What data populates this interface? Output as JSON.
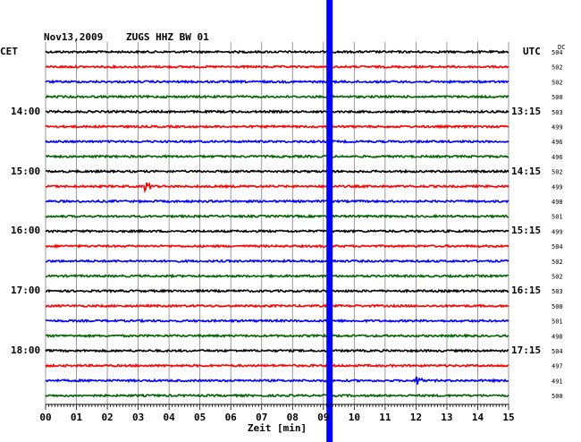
{
  "header": {
    "date": "Nov13,2009",
    "station": "ZUGS HHZ BW 01",
    "left_tz": "CET",
    "right_tz": "UTC",
    "dc_header": "DC"
  },
  "colors": {
    "trace_cycle": [
      "#000000",
      "#ff0000",
      "#0000ff",
      "#006400"
    ],
    "event_marker": "#0000ff",
    "grid": "#808080",
    "axis": "#000000"
  },
  "chart_data": {
    "type": "line",
    "title": "Nov13,2009   ZUGS HHZ BW 01",
    "xlabel": "Zeit [min]",
    "ylabel": "",
    "xlim": [
      0,
      15
    ],
    "x_ticks": [
      "00",
      "01",
      "02",
      "03",
      "04",
      "05",
      "06",
      "07",
      "08",
      "09",
      "10",
      "11",
      "12",
      "13",
      "14",
      "15"
    ],
    "grid": true,
    "trace_count": 24,
    "trace_interval_min": 15,
    "left_time_labels": [
      {
        "trace": 4,
        "label": "14:00"
      },
      {
        "trace": 8,
        "label": "15:00"
      },
      {
        "trace": 12,
        "label": "16:00"
      },
      {
        "trace": 16,
        "label": "17:00"
      },
      {
        "trace": 20,
        "label": "18:00"
      }
    ],
    "right_time_labels": [
      {
        "trace": 4,
        "label": "13:15"
      },
      {
        "trace": 8,
        "label": "14:15"
      },
      {
        "trace": 12,
        "label": "15:15"
      },
      {
        "trace": 16,
        "label": "16:15"
      },
      {
        "trace": 20,
        "label": "17:15"
      }
    ],
    "dc_offsets": [
      504,
      502,
      502,
      500,
      503,
      499,
      496,
      496,
      502,
      499,
      498,
      501,
      499,
      504,
      502,
      502,
      503,
      500,
      501,
      498,
      504,
      497,
      491,
      500
    ],
    "event_marker_minute": 9.2,
    "small_events": [
      {
        "trace": 9,
        "minute": 3.2
      },
      {
        "trace": 22,
        "minute": 12.0
      }
    ]
  }
}
